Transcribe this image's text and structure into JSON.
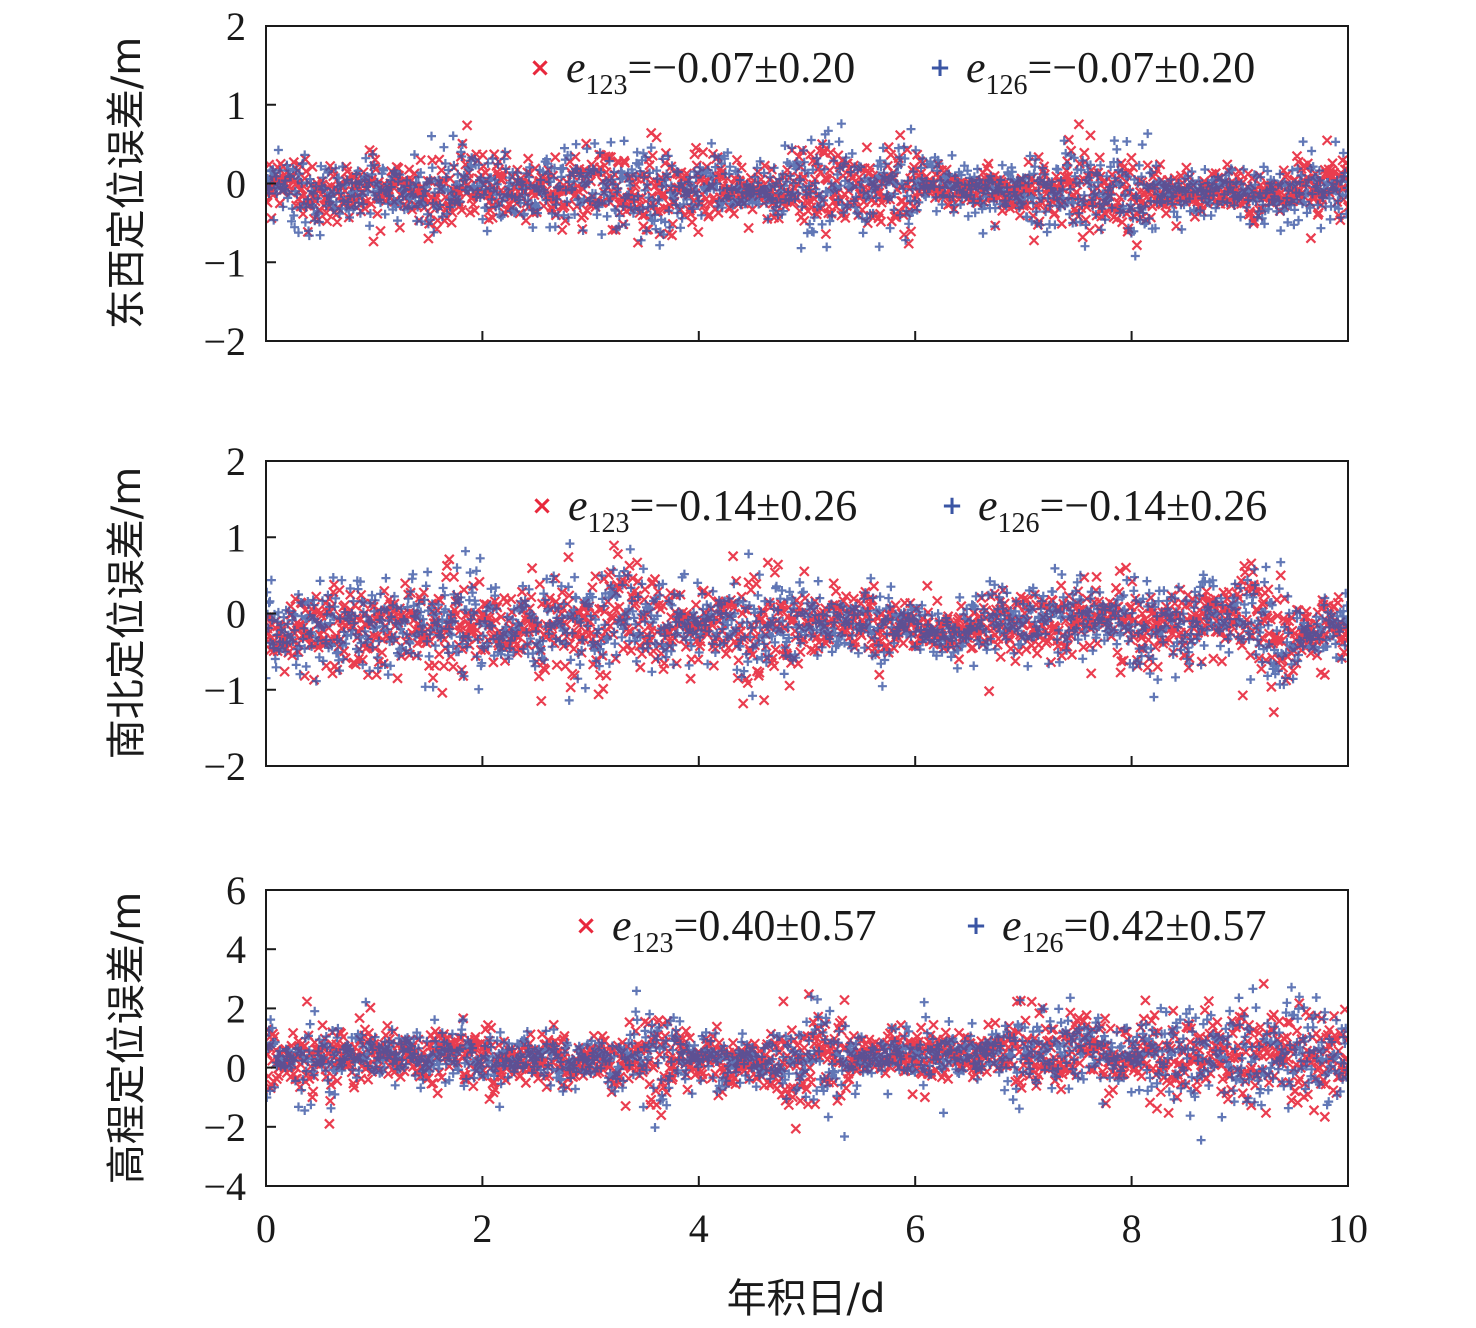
{
  "chart_data": [
    {
      "type": "scatter",
      "ylabel": "东西定位误差/m",
      "ylim": [
        -2,
        2
      ],
      "yticks": [
        "2",
        "1",
        "0",
        "−1",
        "−2"
      ],
      "xlim": [
        0,
        10
      ],
      "series": [
        {
          "name": "e123",
          "color": "#e8283c",
          "marker": "×",
          "mean": -0.07,
          "std": 0.2,
          "label_value": "=−0.07±0.20"
        },
        {
          "name": "e126",
          "color": "#3a55a4",
          "marker": "+",
          "mean": -0.07,
          "std": 0.2,
          "label_value": "=−0.07±0.20"
        }
      ],
      "legend": [
        {
          "italic": "e",
          "sub": "123",
          "rest": "=−0.07±0.20"
        },
        {
          "italic": "e",
          "sub": "126",
          "rest": "=−0.07±0.20"
        }
      ]
    },
    {
      "type": "scatter",
      "ylabel": "南北定位误差/m",
      "ylim": [
        -2,
        2
      ],
      "yticks": [
        "2",
        "1",
        "0",
        "−1",
        "−2"
      ],
      "xlim": [
        0,
        10
      ],
      "series": [
        {
          "name": "e123",
          "color": "#e8283c",
          "marker": "×",
          "mean": -0.14,
          "std": 0.26,
          "label_value": "=−0.14±0.26"
        },
        {
          "name": "e126",
          "color": "#3a55a4",
          "marker": "+",
          "mean": -0.14,
          "std": 0.26,
          "label_value": "=−0.14±0.26"
        }
      ],
      "legend": [
        {
          "italic": "e",
          "sub": "123",
          "rest": "=−0.14±0.26"
        },
        {
          "italic": "e",
          "sub": "126",
          "rest": "=−0.14±0.26"
        }
      ]
    },
    {
      "type": "scatter",
      "ylabel": "高程定位误差/m",
      "xlabel": "年积日/d",
      "ylim": [
        -4,
        6
      ],
      "yticks": [
        "6",
        "4",
        "2",
        "0",
        "−2",
        "−4"
      ],
      "xlim": [
        0,
        10
      ],
      "xticks": [
        "0",
        "2",
        "4",
        "6",
        "8",
        "10"
      ],
      "series": [
        {
          "name": "e123",
          "color": "#e8283c",
          "marker": "×",
          "mean": 0.4,
          "std": 0.57,
          "label_value": "=0.40±0.57"
        },
        {
          "name": "e126",
          "color": "#3a55a4",
          "marker": "+",
          "mean": 0.42,
          "std": 0.57,
          "label_value": "=0.42±0.57"
        }
      ],
      "legend": [
        {
          "italic": "e",
          "sub": "123",
          "rest": "=0.40±0.57"
        },
        {
          "italic": "e",
          "sub": "126",
          "rest": "=0.42±0.57"
        }
      ]
    }
  ]
}
